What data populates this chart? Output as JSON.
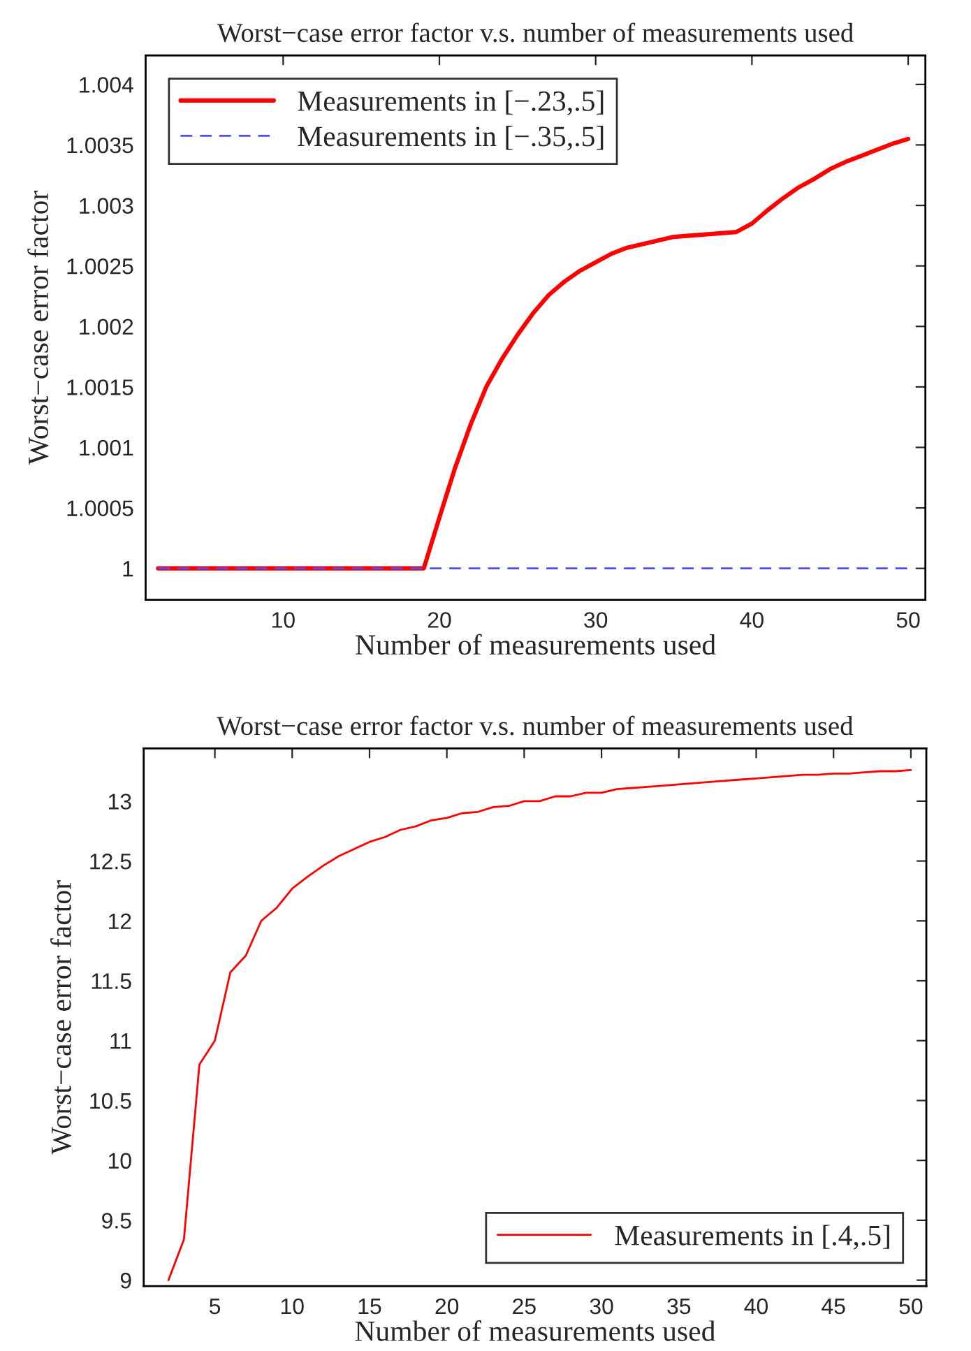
{
  "chart_data": [
    {
      "type": "line",
      "title": "Worst−case error factor v.s. number of measurements used",
      "xlabel": "Number of measurements used",
      "ylabel": "Worst−case error factor",
      "x": [
        2,
        3,
        4,
        5,
        6,
        7,
        8,
        9,
        10,
        11,
        12,
        13,
        14,
        15,
        16,
        17,
        18,
        19,
        20,
        21,
        22,
        23,
        24,
        25,
        26,
        27,
        28,
        29,
        30,
        31,
        32,
        33,
        34,
        35,
        36,
        37,
        38,
        39,
        40,
        41,
        42,
        43,
        44,
        45,
        46,
        47,
        48,
        49,
        50
      ],
      "series": [
        {
          "name": "Measurements in [−.23,.5]",
          "color": "#ff0000",
          "line_style": "solid",
          "values": [
            1,
            1,
            1,
            1,
            1,
            1,
            1,
            1,
            1,
            1,
            1,
            1,
            1,
            1,
            1,
            1,
            1,
            1,
            1.00042,
            1.00083,
            1.00119,
            1.0015,
            1.00173,
            1.00193,
            1.00211,
            1.00226,
            1.00237,
            1.00246,
            1.00253,
            1.0026,
            1.00265,
            1.00268,
            1.00271,
            1.00274,
            1.00275,
            1.00276,
            1.00277,
            1.00278,
            1.00285,
            1.00296,
            1.00306,
            1.00315,
            1.00322,
            1.0033,
            1.00336,
            1.00341,
            1.00346,
            1.00351,
            1.00355
          ]
        },
        {
          "name": "Measurements in [−.35,.5]",
          "color": "#4d4dff",
          "line_style": "dashed",
          "values": [
            1,
            1,
            1,
            1,
            1,
            1,
            1,
            1,
            1,
            1,
            1,
            1,
            1,
            1,
            1,
            1,
            1,
            1,
            1,
            1,
            1,
            1,
            1,
            1,
            1,
            1,
            1,
            1,
            1,
            1,
            1,
            1,
            1,
            1,
            1,
            1,
            1,
            1,
            1,
            1,
            1,
            1,
            1,
            1,
            1,
            1,
            1,
            1,
            1
          ]
        }
      ],
      "xlim": [
        1.2,
        51.1
      ],
      "xticks": [
        10,
        20,
        30,
        40,
        50
      ],
      "ylim": [
        0.99974,
        1.00424
      ],
      "yticks": [
        1,
        1.0005,
        1.001,
        1.0015,
        1.002,
        1.0025,
        1.003,
        1.0035,
        1.004
      ],
      "legend": "top left",
      "grid": false
    },
    {
      "type": "line",
      "title": "Worst−case error factor v.s. number of measurements used",
      "xlabel": "Number of measurements used",
      "ylabel": "Worst−case error factor",
      "x": [
        2,
        3,
        4,
        5,
        6,
        7,
        8,
        9,
        10,
        11,
        12,
        13,
        14,
        15,
        16,
        17,
        18,
        19,
        20,
        21,
        22,
        23,
        24,
        25,
        26,
        27,
        28,
        29,
        30,
        31,
        32,
        33,
        34,
        35,
        36,
        37,
        38,
        39,
        40,
        41,
        42,
        43,
        44,
        45,
        46,
        47,
        48,
        49,
        50
      ],
      "series": [
        {
          "name": "Measurements in [.4,.5]",
          "color": "#ff0000",
          "line_style": "solid",
          "values": [
            9.0,
            9.34,
            10.8,
            11.0,
            11.57,
            11.71,
            12.0,
            12.11,
            12.27,
            12.37,
            12.46,
            12.54,
            12.6,
            12.66,
            12.7,
            12.76,
            12.79,
            12.84,
            12.86,
            12.9,
            12.91,
            12.95,
            12.96,
            13.0,
            13.0,
            13.04,
            13.04,
            13.07,
            13.07,
            13.1,
            13.11,
            13.12,
            13.13,
            13.14,
            13.15,
            13.16,
            13.17,
            13.18,
            13.19,
            13.2,
            13.21,
            13.22,
            13.22,
            13.23,
            13.23,
            13.24,
            13.25,
            13.25,
            13.26
          ]
        }
      ],
      "xlim": [
        0.4,
        51
      ],
      "xticks": [
        5,
        10,
        15,
        20,
        25,
        30,
        35,
        40,
        45,
        50
      ],
      "ylim": [
        8.95,
        13.44
      ],
      "yticks": [
        9,
        9.5,
        10,
        10.5,
        11,
        11.5,
        12,
        12.5,
        13
      ],
      "legend": "bottom right",
      "grid": false
    }
  ]
}
